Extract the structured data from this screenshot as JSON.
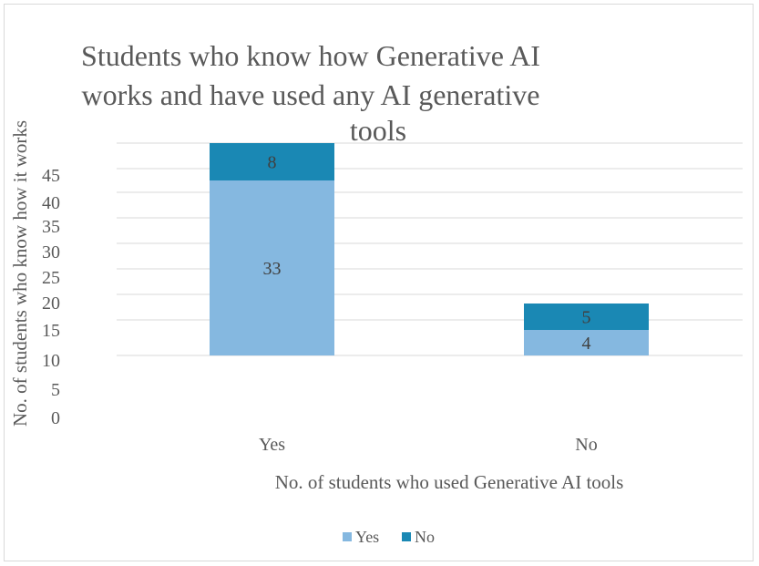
{
  "chart_data": {
    "type": "bar",
    "stacked": true,
    "title": "Students who know how Generative AI works and have used any AI generative tools",
    "title_lines": [
      "Students who know how Generative AI",
      "works and have used any AI generative",
      "tools"
    ],
    "xlabel": "No. of  students who used Generative AI tools",
    "ylabel": "No. of students who know how it works",
    "categories": [
      "Yes",
      "No"
    ],
    "series": [
      {
        "name": "Yes",
        "values": [
          33,
          4
        ],
        "color": "#85b8e0"
      },
      {
        "name": "No",
        "values": [
          8,
          5
        ],
        "color": "#1a88b4"
      }
    ],
    "y_tick_labels": [
      "0",
      "5",
      "10",
      "15",
      "20",
      "25",
      "30",
      "35",
      "40",
      "45"
    ],
    "grid": true,
    "legend_position": "bottom"
  }
}
